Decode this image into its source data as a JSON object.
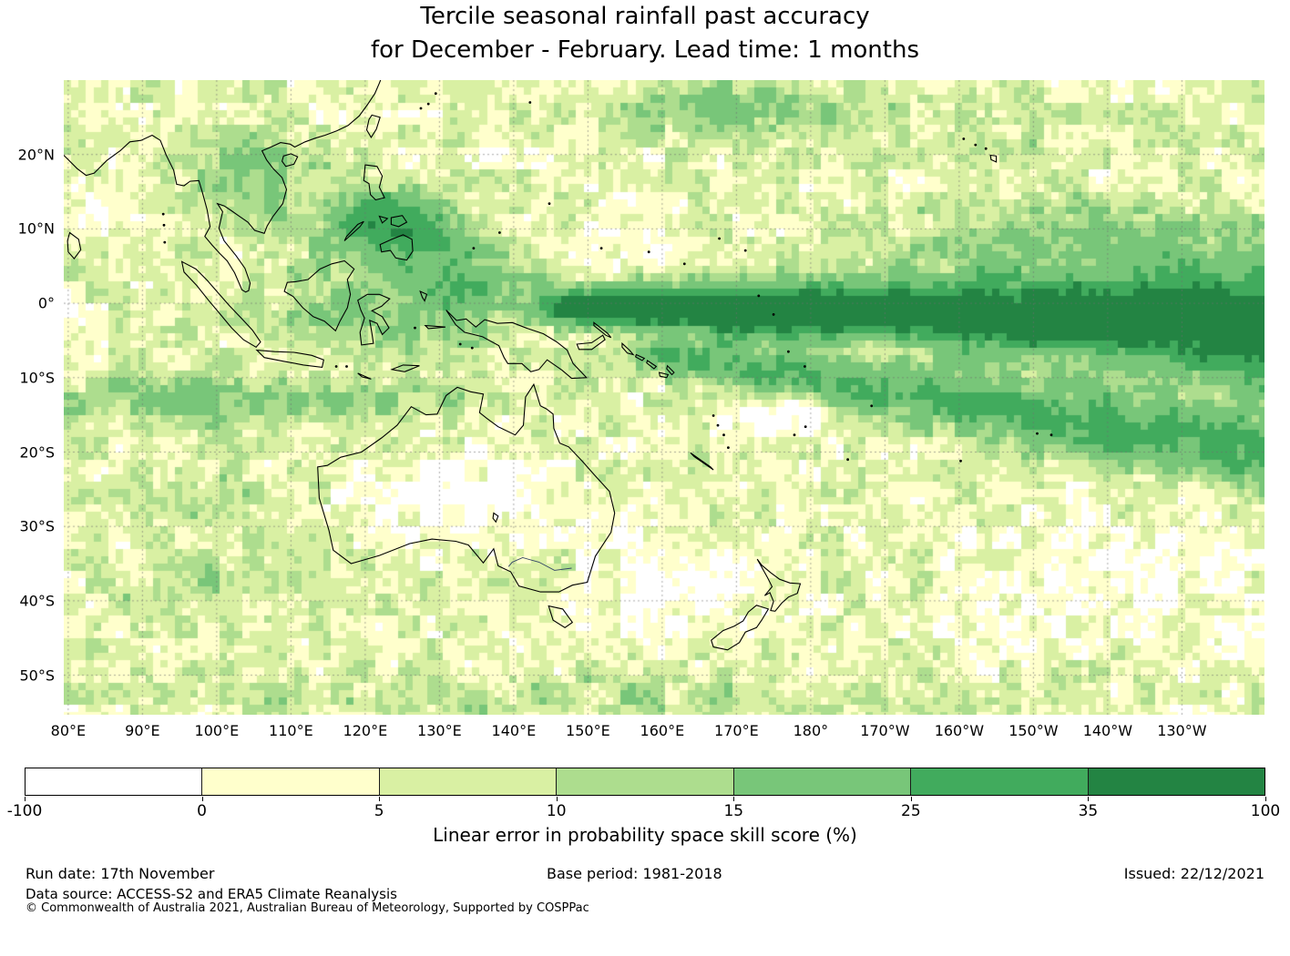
{
  "title": {
    "line1": "Tercile seasonal rainfall past accuracy",
    "line2": "for December - February. Lead time: 1 months"
  },
  "footer": {
    "run_date": "Run date: 17th November",
    "base_period": "Base period: 1981-2018",
    "issued": "Issued: 22/12/2021",
    "data_source": "Data source: ACCESS-S2 and ERA5 Climate Reanalysis",
    "copyright": "© Commonwealth of Australia 2021, Australian Bureau of Meteorology, Supported by COSPPac"
  },
  "chart_data": {
    "type": "heatmap",
    "title": "Tercile seasonal rainfall past accuracy for December - February. Lead time: 1 months",
    "projection": "equirectangular",
    "lon_range": [
      79.4,
      241.1
    ],
    "lat_range": [
      -55.3,
      30.0
    ],
    "cell_size_deg": 1,
    "grid": "dashed 10-degree graticule",
    "x_tick_labels": [
      "80°E",
      "90°E",
      "100°E",
      "110°E",
      "120°E",
      "130°E",
      "140°E",
      "150°E",
      "160°E",
      "170°E",
      "180°",
      "170°W",
      "160°W",
      "150°W",
      "140°W",
      "130°W"
    ],
    "x_tick_lons": [
      80,
      90,
      100,
      110,
      120,
      130,
      140,
      150,
      160,
      170,
      180,
      190,
      200,
      210,
      220,
      230
    ],
    "y_tick_labels": [
      "20°N",
      "10°N",
      "0°",
      "10°S",
      "20°S",
      "30°S",
      "40°S",
      "50°S"
    ],
    "y_tick_lats": [
      20,
      10,
      0,
      -10,
      -20,
      -30,
      -40,
      -50
    ],
    "colorbar": {
      "label": "Linear error in probability space skill score (%)",
      "tick_labels": [
        "-100",
        "0",
        "5",
        "10",
        "15",
        "25",
        "35",
        "100"
      ],
      "levels": [
        -100,
        0,
        5,
        10,
        15,
        25,
        35,
        100
      ],
      "colors": [
        "#ffffff",
        "#ffffcc",
        "#d9f0a3",
        "#addd8e",
        "#78c679",
        "#41ab5d",
        "#238443"
      ]
    },
    "base_skill": 5,
    "noise": {
      "coarse_amp": 9,
      "fine_amp": 7,
      "coarse_scale": 3
    },
    "features": [
      {
        "name": "equatorial-pacific-high-skill-band",
        "kind": "ridge",
        "lon0": 148,
        "lon1": 242,
        "lat_start": -0.5,
        "lat_end": -2.5,
        "width_start": 2.2,
        "width_end": 7.5,
        "amp": 42
      },
      {
        "name": "south-pacific-convergence-band",
        "kind": "ridge",
        "lon0": 160,
        "lon1": 242,
        "lat_start": -7,
        "lat_end": -20,
        "width_start": 2.5,
        "width_end": 5.5,
        "amp": 22
      },
      {
        "name": "philippines-west-pacific-blob",
        "kind": "blob",
        "lon": 124,
        "lat": 10,
        "slon": 9,
        "slat": 5,
        "amp": 30
      },
      {
        "name": "west-pacific-equator-blob",
        "kind": "blob",
        "lon": 136,
        "lat": 2,
        "slon": 10,
        "slat": 5,
        "amp": 16
      },
      {
        "name": "maritime-continent-blob",
        "kind": "blob",
        "lon": 118,
        "lat": -2,
        "slon": 14,
        "slat": 5,
        "amp": 10
      },
      {
        "name": "south-indian-12s-band",
        "kind": "blob",
        "lon": 105,
        "lat": -13,
        "slon": 26,
        "slat": 2.8,
        "amp": 13
      },
      {
        "name": "indochina-blob",
        "kind": "blob",
        "lon": 103,
        "lat": 17,
        "slon": 10,
        "slat": 6,
        "amp": 10
      },
      {
        "name": "subtropical-nw-pacific-band",
        "kind": "blob",
        "lon": 170,
        "lat": 26,
        "slon": 16,
        "slat": 3.5,
        "amp": 13
      },
      {
        "name": "north-equatorial-east-band",
        "kind": "blob",
        "lon": 218,
        "lat": 9,
        "slon": 22,
        "slat": 4,
        "amp": 12
      },
      {
        "name": "hawaii-patch",
        "kind": "blob",
        "lon": 205,
        "lat": 20.5,
        "slon": 7,
        "slat": 3,
        "amp": 7
      },
      {
        "name": "australia-interior-low",
        "kind": "blob",
        "lon": 133,
        "lat": -26,
        "slon": 13,
        "slat": 5.5,
        "amp": -9
      },
      {
        "name": "tasman-low",
        "kind": "blob",
        "lon": 160,
        "lat": -38,
        "slon": 14,
        "slat": 7,
        "amp": -7
      },
      {
        "name": "west-pacific-north-low",
        "kind": "blob",
        "lon": 158,
        "lat": 7,
        "slon": 10,
        "slat": 2.8,
        "amp": -8
      },
      {
        "name": "coral-sea-low",
        "kind": "blob",
        "lon": 176,
        "lat": -15,
        "slon": 8,
        "slat": 3.2,
        "amp": -10
      },
      {
        "name": "se-pacific-low",
        "kind": "blob",
        "lon": 220,
        "lat": -38,
        "slon": 20,
        "slat": 9,
        "amp": -6
      },
      {
        "name": "central-band-pocket",
        "kind": "blob",
        "lon": 190,
        "lat": -5.5,
        "slon": 8,
        "slat": 2.2,
        "amp": -16
      },
      {
        "name": "east-band-pocket",
        "kind": "blob",
        "lon": 215,
        "lat": -7,
        "slon": 12,
        "slat": 2.4,
        "amp": -10
      },
      {
        "name": "bay-of-bengal-low",
        "kind": "blob",
        "lon": 86,
        "lat": 13,
        "slon": 6,
        "slat": 5,
        "amp": -6
      },
      {
        "name": "indian-ocean-25s-patch",
        "kind": "blob",
        "lon": 98,
        "lat": -27,
        "slon": 9,
        "slat": 4,
        "amp": 7
      },
      {
        "name": "indian-ocean-40s-patch",
        "kind": "blob",
        "lon": 96,
        "lat": -38,
        "slon": 11,
        "slat": 4,
        "amp": 6
      },
      {
        "name": "southern-ocean-52s-band",
        "kind": "blob",
        "lon": 150,
        "lat": -53,
        "slon": 40,
        "slat": 3,
        "amp": 6
      }
    ],
    "coastline_color": "#000000",
    "background_color": "#ffffff"
  }
}
